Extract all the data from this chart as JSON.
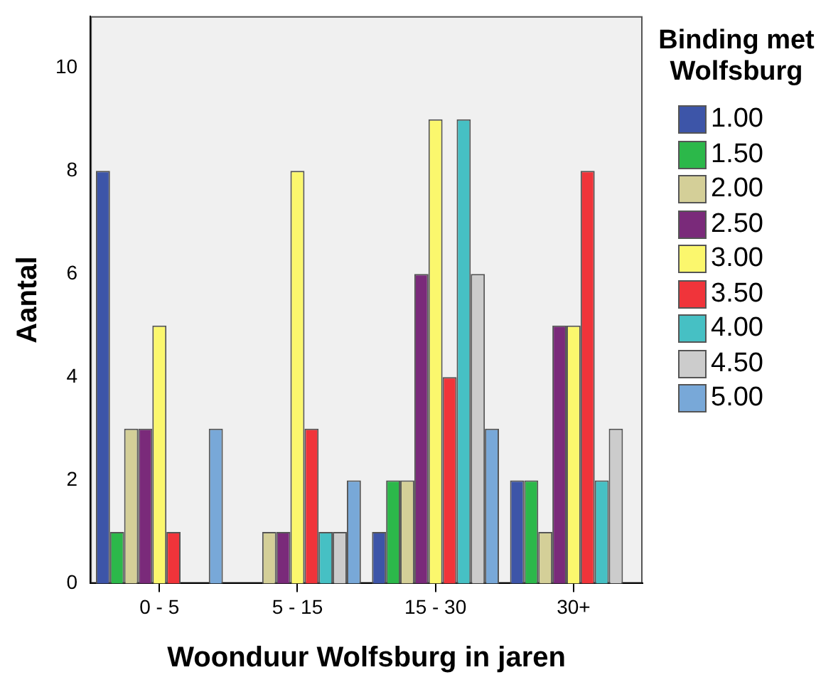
{
  "chart_data": {
    "type": "bar",
    "xlabel": "Woonduur Wolfsburg in jaren",
    "ylabel": "Aantal",
    "legend_title": "Binding met Wolfsburg",
    "legend": "right",
    "categories": [
      "0 - 5",
      "5 - 15",
      "15 - 30",
      "30+"
    ],
    "ylim": [
      0,
      11
    ],
    "yticks": [
      0,
      2,
      4,
      6,
      8,
      10
    ],
    "grid": false,
    "series": [
      {
        "name": "1.00",
        "color": "#3d55a8",
        "values": [
          8,
          null,
          1,
          2
        ]
      },
      {
        "name": "1.50",
        "color": "#2cb84a",
        "values": [
          1,
          null,
          2,
          2
        ]
      },
      {
        "name": "2.00",
        "color": "#d4cf98",
        "values": [
          3,
          1,
          2,
          1
        ]
      },
      {
        "name": "2.50",
        "color": "#7a2a7a",
        "values": [
          3,
          1,
          6,
          5
        ]
      },
      {
        "name": "3.00",
        "color": "#fbf76d",
        "values": [
          5,
          8,
          9,
          5
        ]
      },
      {
        "name": "3.50",
        "color": "#f0343a",
        "values": [
          1,
          3,
          4,
          8
        ]
      },
      {
        "name": "4.00",
        "color": "#46c0c4",
        "values": [
          null,
          1,
          9,
          2
        ]
      },
      {
        "name": "4.50",
        "color": "#cccccc",
        "values": [
          null,
          1,
          6,
          3
        ]
      },
      {
        "name": "5.00",
        "color": "#78a8d8",
        "values": [
          3,
          2,
          3,
          null
        ]
      }
    ]
  }
}
